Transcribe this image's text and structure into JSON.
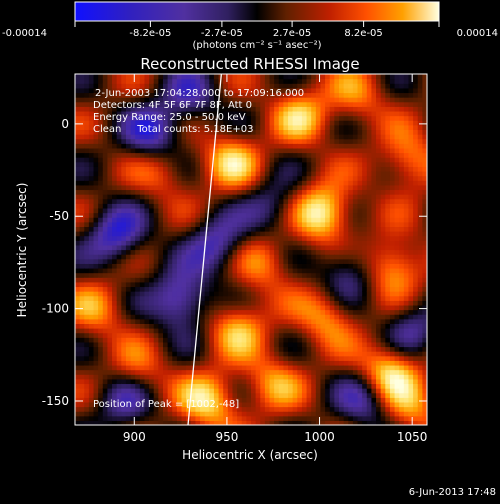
{
  "colorbar": {
    "tick_labels": [
      "-0.00014",
      "-8.2e-05",
      "-2.7e-05",
      "2.7e-05",
      "8.2e-05",
      "0.00014"
    ],
    "tick_values": [
      -0.00014,
      -8.2e-05,
      -2.7e-05,
      2.7e-05,
      8.2e-05,
      0.00014
    ],
    "range": [
      -0.00014,
      0.00014
    ]
  },
  "units_label": "(photons cm⁻² s⁻¹ asec⁻²)",
  "annotations": {
    "time_range": "2-Jun-2003 17:04:28.000 to 17:09:16.000",
    "detectors": "Detectors: 4F 5F 6F 7F 8F, Att 0",
    "energy_range": "Energy Range: 25.0 - 50.0 keV",
    "clean_counts": "Clean     Total counts: 5.18E+03",
    "peak": "Position of Peak = [1002,-48]"
  },
  "footer": {
    "date_stamp": "6-Jun-2013 17:48"
  },
  "chart_data": {
    "type": "heatmap",
    "title": "Reconstructed RHESSI Image",
    "xlabel": "Heliocentric X (arcsec)",
    "ylabel": "Heliocentric Y (arcsec)",
    "xlim": [
      868,
      1058
    ],
    "ylim": [
      -163,
      27
    ],
    "x_ticks": [
      900,
      950,
      1000,
      1050
    ],
    "y_ticks": [
      0,
      -50,
      -100,
      -150
    ],
    "x_tick_labels": [
      "900",
      "950",
      "1000",
      "1050"
    ],
    "y_tick_labels": [
      "0",
      "-50",
      "-100",
      "-150"
    ],
    "peak_position": [
      1002,
      -48
    ],
    "limb_line": [
      [
        947,
        27
      ],
      [
        929,
        -163
      ]
    ],
    "colormap": [
      "#1010ff",
      "#3020c0",
      "#5030a0",
      "#302060",
      "#000000",
      "#602000",
      "#c02000",
      "#ff5000",
      "#ffa000",
      "#ffe060",
      "#ffffe0"
    ],
    "blobs": [
      {
        "x": 1002,
        "y": -48,
        "value": 1.0
      },
      {
        "x": 1004,
        "y": -104,
        "value": 0.6
      },
      {
        "x": 1040,
        "y": -77,
        "value": 0.75
      },
      {
        "x": 1038,
        "y": -134,
        "value": 0.9
      },
      {
        "x": 956,
        "y": -110,
        "value": 0.65
      },
      {
        "x": 952,
        "y": -20,
        "value": 0.7
      },
      {
        "x": 940,
        "y": -150,
        "value": 0.8
      },
      {
        "x": 990,
        "y": 5,
        "value": 0.65
      },
      {
        "x": 1048,
        "y": -20,
        "value": 0.6
      },
      {
        "x": 880,
        "y": -100,
        "value": 0.5
      },
      {
        "x": 902,
        "y": -135,
        "value": 0.45
      },
      {
        "x": 970,
        "y": -75,
        "value": 0.5
      },
      {
        "x": 1020,
        "y": 15,
        "value": 0.45
      },
      {
        "x": 915,
        "y": -25,
        "value": 0.4
      },
      {
        "x": 1050,
        "y": -155,
        "value": 0.5
      },
      {
        "x": 975,
        "y": -140,
        "value": 0.55
      },
      {
        "x": 890,
        "y": -60,
        "value": -0.8
      },
      {
        "x": 925,
        "y": -95,
        "value": -0.9
      },
      {
        "x": 910,
        "y": -5,
        "value": -0.75
      },
      {
        "x": 945,
        "y": -65,
        "value": -0.7
      },
      {
        "x": 1015,
        "y": -80,
        "value": -0.6
      },
      {
        "x": 1025,
        "y": -150,
        "value": -0.6
      },
      {
        "x": 895,
        "y": -150,
        "value": -0.6
      },
      {
        "x": 975,
        "y": -45,
        "value": -0.5
      },
      {
        "x": 1050,
        "y": -110,
        "value": -0.55
      },
      {
        "x": 930,
        "y": 15,
        "value": -0.55
      }
    ]
  }
}
